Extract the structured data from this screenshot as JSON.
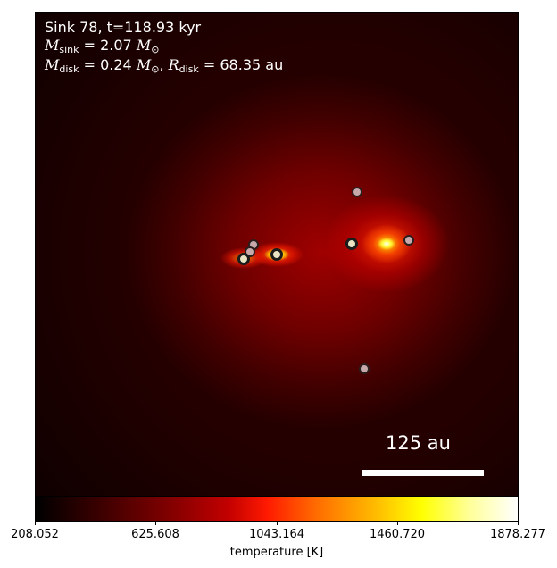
{
  "annotation": {
    "line1": "Sink 78, t=118.93 kyr",
    "msink_symbol": "M",
    "msink_sub": "sink",
    "msink_value": " = 2.07",
    "msun_symbol": "M",
    "msun_sub": "⊙",
    "mdisk_symbol": "M",
    "mdisk_sub": "disk",
    "mdisk_value": " = 0.24",
    "rdisk_symbol": "R",
    "rdisk_sub": "disk",
    "rdisk_value": " = 68.35 au",
    "comma": ", "
  },
  "scale_bar": {
    "label": "125 au"
  },
  "colorbar": {
    "label": "temperature [K]",
    "ticks": [
      "208.052",
      "625.608",
      "1043.164",
      "1460.720",
      "1878.277"
    ],
    "range": [
      208.052,
      1878.277
    ]
  },
  "colormap": "hot",
  "sink_marker_color": "#c7a9ab"
}
